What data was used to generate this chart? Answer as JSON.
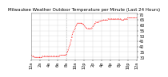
{
  "title": "Milwaukee Weather Outdoor Temperature per Minute (Last 24 Hours)",
  "background_color": "#ffffff",
  "plot_bg_color": "#ffffff",
  "line_color": "#ff0000",
  "grid_color": "#cccccc",
  "yticks": [
    30,
    35,
    40,
    45,
    50,
    55,
    60,
    65,
    70
  ],
  "ylim": [
    28,
    72
  ],
  "xlim": [
    0,
    1440
  ],
  "vline_x": 480,
  "x_values": [
    0,
    10,
    20,
    30,
    40,
    50,
    60,
    70,
    80,
    90,
    100,
    110,
    120,
    130,
    140,
    150,
    160,
    170,
    180,
    190,
    200,
    210,
    220,
    230,
    240,
    250,
    260,
    270,
    280,
    290,
    300,
    310,
    320,
    330,
    340,
    350,
    360,
    370,
    380,
    390,
    400,
    410,
    420,
    430,
    440,
    450,
    460,
    470,
    480,
    490,
    500,
    510,
    520,
    530,
    540,
    550,
    560,
    570,
    580,
    590,
    600,
    610,
    620,
    630,
    640,
    650,
    660,
    670,
    680,
    690,
    700,
    710,
    720,
    730,
    740,
    750,
    760,
    770,
    780,
    790,
    800,
    810,
    820,
    830,
    840,
    850,
    860,
    870,
    880,
    890,
    900,
    910,
    920,
    930,
    940,
    950,
    960,
    970,
    980,
    990,
    1000,
    1010,
    1020,
    1030,
    1040,
    1050,
    1060,
    1070,
    1080,
    1090,
    1100,
    1110,
    1120,
    1130,
    1140,
    1150,
    1160,
    1170,
    1180,
    1190,
    1200,
    1210,
    1220,
    1230,
    1240,
    1250,
    1260,
    1270,
    1280,
    1290,
    1300,
    1310,
    1320,
    1330,
    1340,
    1350,
    1360,
    1370,
    1380,
    1390,
    1400,
    1410,
    1420,
    1430,
    1440
  ],
  "y_values": [
    32,
    31,
    31,
    31,
    30,
    30,
    30,
    30,
    30,
    30,
    30,
    30,
    30,
    30,
    30,
    31,
    31,
    31,
    31,
    31,
    31,
    31,
    31,
    31,
    31,
    31,
    31,
    31,
    31,
    31,
    31,
    31,
    31,
    31,
    31,
    31,
    31,
    31,
    31,
    32,
    32,
    32,
    32,
    32,
    32,
    32,
    32,
    32,
    33,
    35,
    37,
    39,
    41,
    43,
    46,
    49,
    52,
    54,
    55,
    56,
    58,
    60,
    61,
    62,
    62,
    62,
    62,
    62,
    62,
    62,
    61,
    61,
    60,
    59,
    58,
    58,
    57,
    57,
    57,
    57,
    57,
    57,
    57,
    58,
    59,
    60,
    61,
    62,
    63,
    63,
    63,
    63,
    63,
    64,
    64,
    64,
    64,
    65,
    65,
    65,
    65,
    65,
    65,
    65,
    65,
    66,
    66,
    66,
    66,
    66,
    66,
    66,
    66,
    66,
    66,
    66,
    66,
    66,
    66,
    66,
    66,
    66,
    66,
    65,
    65,
    65,
    65,
    66,
    66,
    66,
    66,
    66,
    67,
    67,
    67,
    67,
    67,
    67,
    67,
    67,
    67,
    67,
    67,
    67,
    67
  ],
  "xtick_positions": [
    0,
    120,
    240,
    360,
    480,
    600,
    720,
    840,
    960,
    1080,
    1200,
    1320,
    1440
  ],
  "xtick_labels": [
    "12a",
    "2a",
    "4a",
    "6a",
    "8a",
    "10a",
    "12p",
    "2p",
    "4p",
    "6p",
    "8p",
    "10p",
    "12a"
  ],
  "title_fontsize": 4,
  "tick_fontsize": 3.5
}
